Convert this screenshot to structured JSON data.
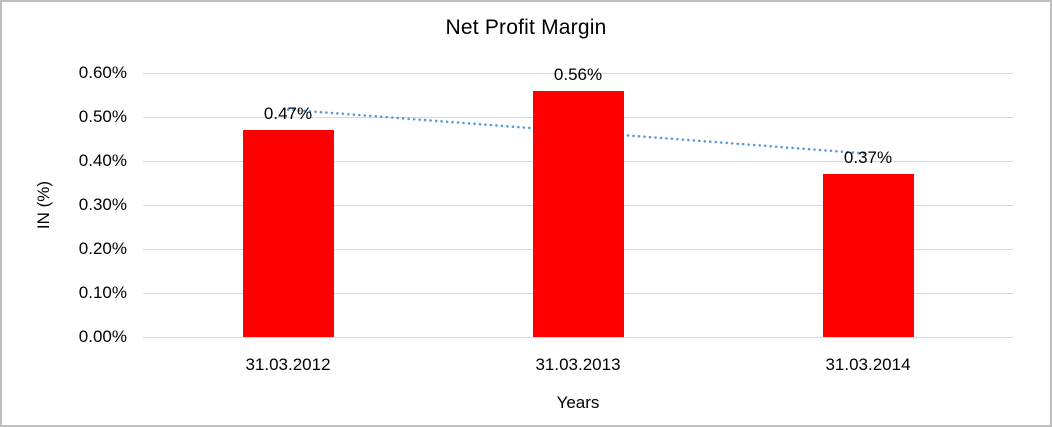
{
  "chart_data": {
    "type": "bar",
    "title": "Net Profit Margin",
    "xlabel": "Years",
    "ylabel": "IN (%)",
    "categories": [
      "31.03.2012",
      "31.03.2013",
      "31.03.2014"
    ],
    "values": [
      0.47,
      0.56,
      0.37
    ],
    "data_labels": [
      "0.47%",
      "0.56%",
      "0.37%"
    ],
    "ylim": [
      0,
      0.6
    ],
    "yticks": [
      {
        "value": 0.0,
        "label": "0.00%"
      },
      {
        "value": 0.1,
        "label": "0.10%"
      },
      {
        "value": 0.2,
        "label": "0.20%"
      },
      {
        "value": 0.3,
        "label": "0.30%"
      },
      {
        "value": 0.4,
        "label": "0.40%"
      },
      {
        "value": 0.5,
        "label": "0.50%"
      },
      {
        "value": 0.6,
        "label": "0.60%"
      }
    ],
    "grid": "horizontal",
    "legend": "none",
    "trendline": {
      "type": "linear",
      "style": "dotted",
      "color": "#5b9bd5"
    },
    "colors": {
      "bar": "#ff0000",
      "gridline": "#d9d9d9",
      "text": "#000000",
      "frame_border": "#bfbfbf",
      "background": "#ffffff"
    }
  }
}
